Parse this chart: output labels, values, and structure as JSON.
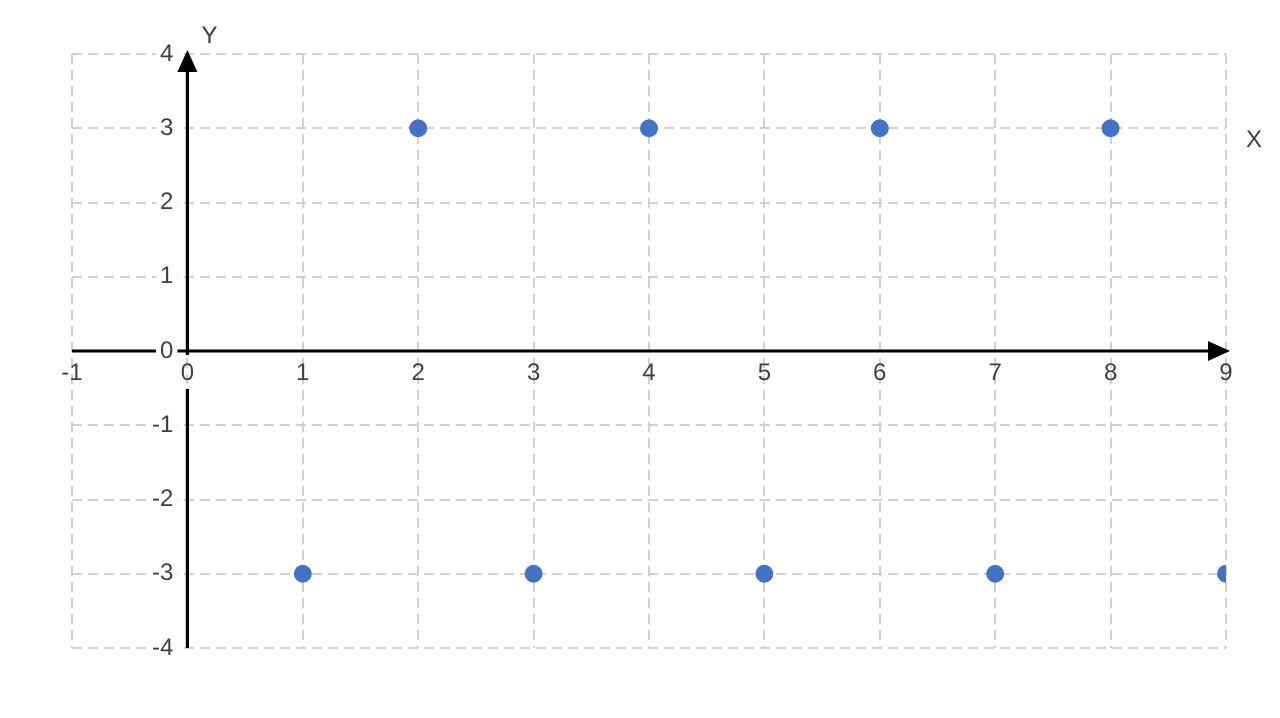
{
  "chart_data": {
    "type": "scatter",
    "xlabel": "X",
    "ylabel": "Y",
    "x": [
      1,
      2,
      3,
      4,
      5,
      6,
      7,
      8,
      9
    ],
    "series": [
      {
        "color": "#4472c4",
        "values": [
          -3,
          3,
          -3,
          3,
          -3,
          3,
          -3,
          3,
          -3
        ]
      }
    ],
    "xlim": [
      -1,
      9
    ],
    "xticks": [
      -1,
      0,
      1,
      2,
      3,
      4,
      5,
      6,
      7,
      8,
      9
    ],
    "ylim": [
      -4,
      4
    ],
    "yticks": [
      -4,
      -3,
      -2,
      -1,
      0,
      1,
      2,
      3,
      4
    ],
    "grid": true,
    "legend": false,
    "marker": "circle"
  }
}
